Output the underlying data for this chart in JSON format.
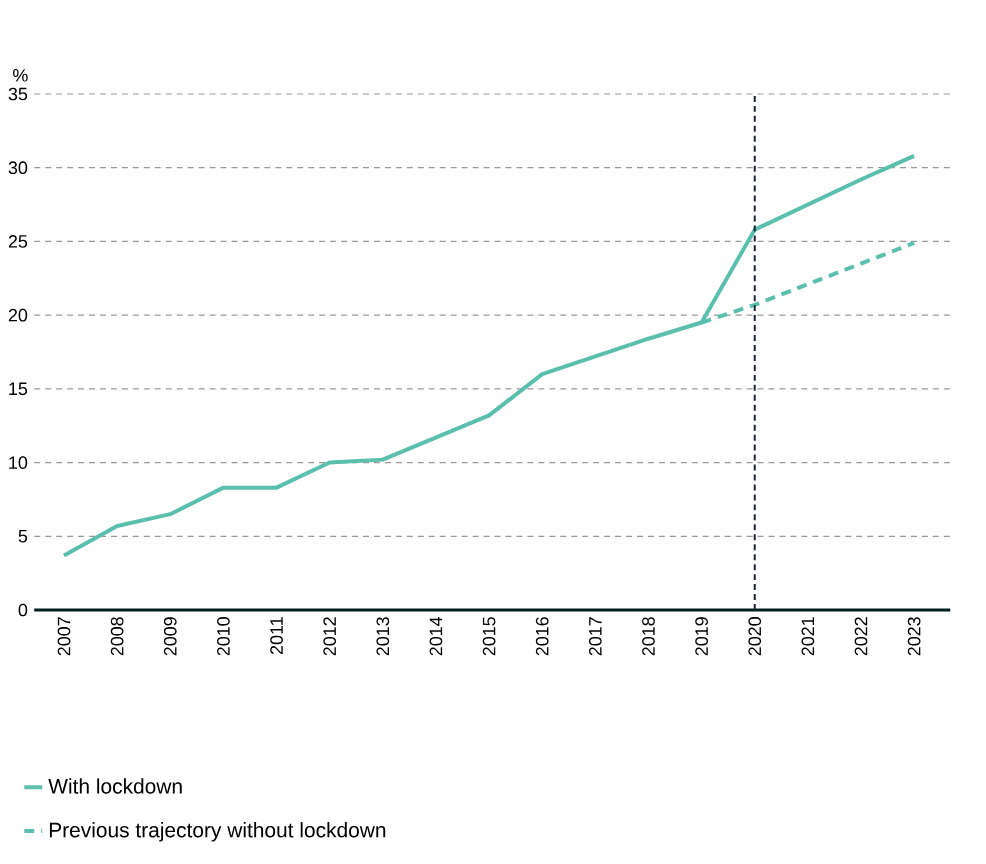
{
  "chart_data": {
    "type": "line",
    "ylabel": "%",
    "categories": [
      "2007",
      "2008",
      "2009",
      "2010",
      "2011",
      "2012",
      "2013",
      "2014",
      "2015",
      "2016",
      "2017",
      "2018",
      "2019",
      "2020",
      "2021",
      "2022",
      "2023"
    ],
    "series": [
      {
        "name": "With lockdown",
        "color": "#5bbfad",
        "line_style": "solid",
        "values": [
          3.7,
          5.7,
          6.5,
          8.3,
          8.3,
          10.0,
          10.2,
          11.7,
          13.2,
          16.0,
          17.2,
          18.4,
          19.5,
          25.8,
          27.5,
          29.2,
          30.8
        ]
      },
      {
        "name": "Previous trajectory without lockdown",
        "color": "#5bbfad",
        "line_style": "dashed",
        "values": [
          null,
          null,
          null,
          null,
          null,
          null,
          null,
          null,
          null,
          null,
          null,
          null,
          19.5,
          20.7,
          22.1,
          23.5,
          24.9
        ]
      }
    ],
    "ylim": [
      0,
      35
    ],
    "yticks": [
      0,
      5,
      10,
      15,
      20,
      25,
      30,
      35
    ],
    "grid": "y",
    "legend": "bottom",
    "marker": "none",
    "ref_lines": [
      {
        "axis": "x",
        "value": "2020",
        "color": "#1a2433",
        "line_style": "dashed"
      }
    ]
  }
}
